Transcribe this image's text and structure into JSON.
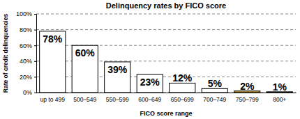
{
  "chart_data": {
    "type": "bar",
    "title": "Delinquency rates by FICO score",
    "x_label": "FICO score range",
    "y_label": "Rate of credit delinquencies",
    "categories": [
      "up to 499",
      "500–549",
      "550–599",
      "600–649",
      "650–699",
      "700–749",
      "750–799",
      "800+"
    ],
    "values": [
      78,
      60,
      39,
      23,
      12,
      5,
      2,
      1
    ],
    "value_labels": [
      "78%",
      "60%",
      "39%",
      "23%",
      "12%",
      "5%",
      "2%",
      "1%"
    ],
    "colors": [
      "#ffffff",
      "#ffffff",
      "#ffffff",
      "#ffffff",
      "#ffffff",
      "#ffffff",
      "#c9a43a",
      "#ffffff"
    ],
    "ylim": [
      0,
      100
    ],
    "yticks": [
      {
        "value": 0,
        "label": "0%"
      },
      {
        "value": 20,
        "label": "20%"
      },
      {
        "value": 40,
        "label": "40%"
      },
      {
        "value": 60,
        "label": "60%"
      },
      {
        "value": 80,
        "label": "80%"
      },
      {
        "value": 100,
        "label": "100%"
      }
    ],
    "grid": true,
    "data_labels": true
  }
}
